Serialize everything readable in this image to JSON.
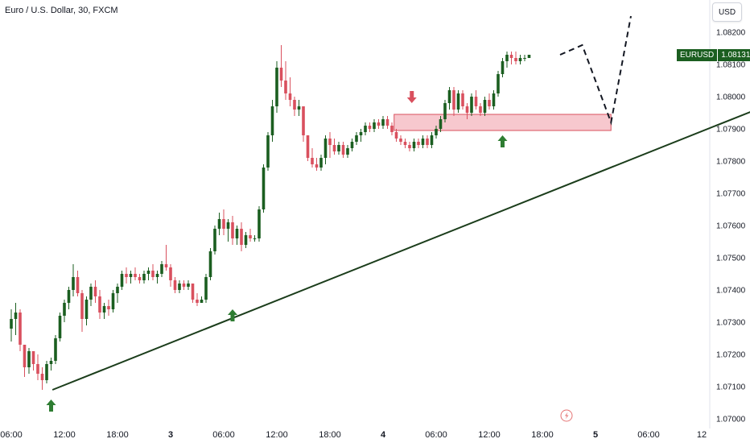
{
  "header": {
    "title": "Euro / U.S. Dollar, 30, FXCM"
  },
  "currency_button": {
    "label": "USD"
  },
  "last_price": {
    "symbol": "EURUSD",
    "value": "1.08131",
    "color": "#1b5e20"
  },
  "colors": {
    "up": "#1b5e20",
    "down": "#d9505e",
    "trendline": "#1b3d1b",
    "zone_fill": "#f4b6bd",
    "zone_border": "#d9505e",
    "arrow_up": "#2e7d32",
    "arrow_down": "#d9505e"
  },
  "icons": {
    "lightning": "lightning-icon"
  },
  "chart_data": {
    "type": "candlestick",
    "title": "Euro / U.S. Dollar, 30, FXCM",
    "symbol": "EURUSD",
    "timeframe": "30",
    "ylim": [
      1.07,
      1.0825
    ],
    "y_ticks": [
      "1.08200",
      "1.08100",
      "1.08000",
      "1.07900",
      "1.07800",
      "1.07700",
      "1.07600",
      "1.07500",
      "1.07400",
      "1.07300",
      "1.07200",
      "1.07100",
      "1.07000"
    ],
    "x_ticks": [
      {
        "label": "06:00",
        "t": 0,
        "bold": false
      },
      {
        "label": "12:00",
        "t": 12,
        "bold": false
      },
      {
        "label": "18:00",
        "t": 24,
        "bold": false
      },
      {
        "label": "3",
        "t": 36,
        "bold": true
      },
      {
        "label": "06:00",
        "t": 48,
        "bold": false
      },
      {
        "label": "12:00",
        "t": 60,
        "bold": false
      },
      {
        "label": "18:00",
        "t": 72,
        "bold": false
      },
      {
        "label": "4",
        "t": 84,
        "bold": true
      },
      {
        "label": "06:00",
        "t": 96,
        "bold": false
      },
      {
        "label": "12:00",
        "t": 108,
        "bold": false
      },
      {
        "label": "18:00",
        "t": 120,
        "bold": false
      },
      {
        "label": "5",
        "t": 132,
        "bold": true
      },
      {
        "label": "06:00",
        "t": 144,
        "bold": false
      },
      {
        "label": "12",
        "t": 156,
        "bold": false
      }
    ],
    "candles": [
      [
        1.0728,
        1.0734,
        1.0724,
        1.0731
      ],
      [
        1.0731,
        1.0736,
        1.0726,
        1.0733
      ],
      [
        1.0733,
        1.0734,
        1.0721,
        1.0723
      ],
      [
        1.0723,
        1.0723,
        1.0713,
        1.0716
      ],
      [
        1.0716,
        1.0722,
        1.0714,
        1.0721
      ],
      [
        1.0721,
        1.0721,
        1.0715,
        1.0717
      ],
      [
        1.0717,
        1.072,
        1.0712,
        1.0714
      ],
      [
        1.0714,
        1.0716,
        1.0709,
        1.0712
      ],
      [
        1.0712,
        1.0718,
        1.0711,
        1.0717
      ],
      [
        1.0717,
        1.0719,
        1.0715,
        1.0718
      ],
      [
        1.0718,
        1.0726,
        1.0717,
        1.0725
      ],
      [
        1.0725,
        1.0733,
        1.0724,
        1.0732
      ],
      [
        1.0732,
        1.0737,
        1.073,
        1.0736
      ],
      [
        1.0736,
        1.0741,
        1.0734,
        1.074
      ],
      [
        1.074,
        1.0748,
        1.0738,
        1.0744
      ],
      [
        1.0744,
        1.0746,
        1.0738,
        1.0739
      ],
      [
        1.0739,
        1.074,
        1.0727,
        1.0731
      ],
      [
        1.0731,
        1.0738,
        1.0729,
        1.0737
      ],
      [
        1.0737,
        1.0742,
        1.0735,
        1.0741
      ],
      [
        1.0741,
        1.0743,
        1.0736,
        1.0738
      ],
      [
        1.0738,
        1.074,
        1.0731,
        1.0733
      ],
      [
        1.0733,
        1.0736,
        1.0731,
        1.0735
      ],
      [
        1.0735,
        1.0737,
        1.0732,
        1.0734
      ],
      [
        1.0734,
        1.074,
        1.0733,
        1.0739
      ],
      [
        1.0739,
        1.0742,
        1.0736,
        1.0741
      ],
      [
        1.0741,
        1.0746,
        1.074,
        1.0745
      ],
      [
        1.0745,
        1.0747,
        1.0742,
        1.0744
      ],
      [
        1.0744,
        1.0746,
        1.0742,
        1.0745
      ],
      [
        1.0745,
        1.0747,
        1.0743,
        1.0744
      ],
      [
        1.0744,
        1.0745,
        1.0742,
        1.0743
      ],
      [
        1.0743,
        1.0746,
        1.0742,
        1.0745
      ],
      [
        1.0745,
        1.0747,
        1.0743,
        1.0746
      ],
      [
        1.0746,
        1.0748,
        1.0743,
        1.0744
      ],
      [
        1.0744,
        1.0746,
        1.0742,
        1.0745
      ],
      [
        1.0745,
        1.0749,
        1.0744,
        1.0748
      ],
      [
        1.0748,
        1.0754,
        1.0746,
        1.0747
      ],
      [
        1.0747,
        1.0748,
        1.0741,
        1.0743
      ],
      [
        1.0743,
        1.0744,
        1.0739,
        1.074
      ],
      [
        1.074,
        1.0743,
        1.0739,
        1.0742
      ],
      [
        1.0742,
        1.0743,
        1.074,
        1.0741
      ],
      [
        1.0741,
        1.0743,
        1.074,
        1.0742
      ],
      [
        1.0742,
        1.0742,
        1.0736,
        1.0737
      ],
      [
        1.0737,
        1.0739,
        1.0735,
        1.0736
      ],
      [
        1.0736,
        1.0738,
        1.0736,
        1.0737
      ],
      [
        1.0737,
        1.0745,
        1.0736,
        1.0744
      ],
      [
        1.0744,
        1.0753,
        1.0743,
        1.0752
      ],
      [
        1.0752,
        1.076,
        1.0751,
        1.0759
      ],
      [
        1.0759,
        1.0764,
        1.0757,
        1.0762
      ],
      [
        1.0762,
        1.0765,
        1.0757,
        1.0759
      ],
      [
        1.0759,
        1.0762,
        1.0755,
        1.0761
      ],
      [
        1.0761,
        1.0763,
        1.0754,
        1.0756
      ],
      [
        1.0756,
        1.076,
        1.0754,
        1.0759
      ],
      [
        1.0759,
        1.0761,
        1.0752,
        1.0754
      ],
      [
        1.0754,
        1.0758,
        1.0753,
        1.0757
      ],
      [
        1.0757,
        1.0759,
        1.0755,
        1.0756
      ],
      [
        1.0756,
        1.0757,
        1.0755,
        1.0756
      ],
      [
        1.0756,
        1.0766,
        1.0755,
        1.0765
      ],
      [
        1.0765,
        1.0779,
        1.0764,
        1.0778
      ],
      [
        1.0778,
        1.0789,
        1.0777,
        1.0788
      ],
      [
        1.0788,
        1.0799,
        1.0786,
        1.0797
      ],
      [
        1.0797,
        1.0811,
        1.0795,
        1.0809
      ],
      [
        1.0809,
        1.0816,
        1.0803,
        1.0805
      ],
      [
        1.0805,
        1.0811,
        1.0799,
        1.0801
      ],
      [
        1.0801,
        1.0806,
        1.0797,
        1.0799
      ],
      [
        1.0799,
        1.08,
        1.0794,
        1.0796
      ],
      [
        1.0796,
        1.0799,
        1.0794,
        1.0797
      ],
      [
        1.0797,
        1.0797,
        1.0786,
        1.0788
      ],
      [
        1.0788,
        1.0788,
        1.078,
        1.0781
      ],
      [
        1.0781,
        1.0784,
        1.0778,
        1.0779
      ],
      [
        1.0779,
        1.0781,
        1.0777,
        1.0778
      ],
      [
        1.0778,
        1.0782,
        1.0777,
        1.0781
      ],
      [
        1.0781,
        1.0788,
        1.0779,
        1.0787
      ],
      [
        1.0787,
        1.0789,
        1.0781,
        1.0785
      ],
      [
        1.0785,
        1.0787,
        1.0782,
        1.0783
      ],
      [
        1.0783,
        1.0786,
        1.0782,
        1.0785
      ],
      [
        1.0785,
        1.0786,
        1.0781,
        1.0782
      ],
      [
        1.0782,
        1.0785,
        1.0781,
        1.0784
      ],
      [
        1.0784,
        1.0787,
        1.0783,
        1.0786
      ],
      [
        1.0786,
        1.0789,
        1.0785,
        1.0788
      ],
      [
        1.0788,
        1.079,
        1.0786,
        1.0789
      ],
      [
        1.0789,
        1.0792,
        1.0788,
        1.0791
      ],
      [
        1.0791,
        1.0792,
        1.0789,
        1.079
      ],
      [
        1.079,
        1.0793,
        1.0789,
        1.0792
      ],
      [
        1.0792,
        1.0793,
        1.079,
        1.0791
      ],
      [
        1.0791,
        1.0794,
        1.079,
        1.0793
      ],
      [
        1.0793,
        1.0794,
        1.079,
        1.0791
      ],
      [
        1.0791,
        1.0792,
        1.0788,
        1.0789
      ],
      [
        1.0789,
        1.079,
        1.0786,
        1.0787
      ],
      [
        1.0787,
        1.0788,
        1.0785,
        1.0786
      ],
      [
        1.0786,
        1.0787,
        1.0784,
        1.0785
      ],
      [
        1.0785,
        1.0786,
        1.0783,
        1.0784
      ],
      [
        1.0784,
        1.0787,
        1.0783,
        1.0786
      ],
      [
        1.0786,
        1.0787,
        1.0784,
        1.0785
      ],
      [
        1.0785,
        1.0788,
        1.0784,
        1.0787
      ],
      [
        1.0787,
        1.0788,
        1.0784,
        1.0785
      ],
      [
        1.0785,
        1.0789,
        1.0784,
        1.0788
      ],
      [
        1.0788,
        1.0791,
        1.0787,
        1.079
      ],
      [
        1.079,
        1.0794,
        1.0789,
        1.0793
      ],
      [
        1.0793,
        1.0799,
        1.0792,
        1.0798
      ],
      [
        1.0798,
        1.0803,
        1.0796,
        1.0802
      ],
      [
        1.0802,
        1.0803,
        1.0794,
        1.0796
      ],
      [
        1.0796,
        1.0802,
        1.0795,
        1.0801
      ],
      [
        1.0801,
        1.0802,
        1.0796,
        1.0797
      ],
      [
        1.0797,
        1.0798,
        1.0793,
        1.0795
      ],
      [
        1.0795,
        1.0801,
        1.0794,
        1.08
      ],
      [
        1.08,
        1.0802,
        1.0796,
        1.0797
      ],
      [
        1.0797,
        1.0798,
        1.0794,
        1.0795
      ],
      [
        1.0795,
        1.08,
        1.0794,
        1.0799
      ],
      [
        1.0799,
        1.0801,
        1.0796,
        1.0797
      ],
      [
        1.0797,
        1.0802,
        1.0796,
        1.0801
      ],
      [
        1.0801,
        1.0808,
        1.08,
        1.0807
      ],
      [
        1.0807,
        1.0812,
        1.0806,
        1.0811
      ],
      [
        1.0811,
        1.0814,
        1.0809,
        1.0813
      ],
      [
        1.0813,
        1.0814,
        1.081,
        1.0812
      ],
      [
        1.0812,
        1.0814,
        1.081,
        1.0811
      ],
      [
        1.0811,
        1.0813,
        1.081,
        1.0812
      ],
      [
        1.0812,
        1.0813,
        1.0811,
        1.0812
      ],
      [
        1.0812,
        1.0813,
        1.0812,
        1.0813
      ]
    ],
    "trendline": [
      [
        9.3,
        1.0709
      ],
      [
        172,
        1.0798
      ]
    ],
    "resistance_zone": {
      "t_start": 86.5,
      "t_end": 135.5,
      "top": 1.0793,
      "bottom": 1.0791
    },
    "arrows": [
      {
        "dir": "up",
        "t": 9,
        "price": 1.0706
      },
      {
        "dir": "up",
        "t": 50,
        "price": 1.0734
      },
      {
        "dir": "down",
        "t": 90.5,
        "price": 1.0798
      },
      {
        "dir": "up",
        "t": 111,
        "price": 1.0788
      }
    ],
    "projection": [
      [
        124,
        1.0813
      ],
      [
        129,
        1.0816
      ],
      [
        135.5,
        1.0792
      ],
      [
        140,
        1.0825
      ]
    ],
    "grid": false
  }
}
